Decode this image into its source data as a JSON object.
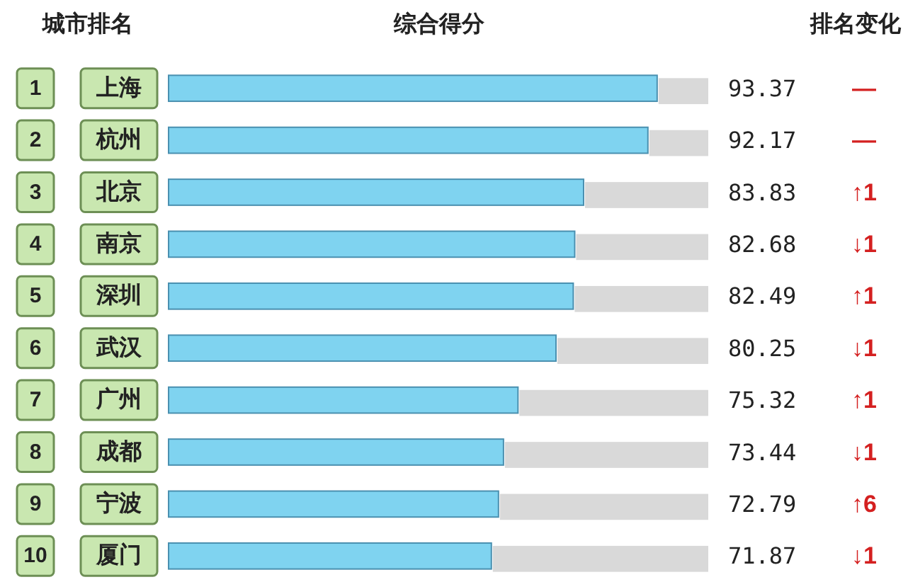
{
  "chart_data": {
    "type": "bar",
    "orientation": "horizontal",
    "ylabel": "城市排名",
    "xlabel": "综合得分",
    "categories": [
      "上海",
      "杭州",
      "北京",
      "南京",
      "深圳",
      "武汉",
      "广州",
      "成都",
      "宁波",
      "厦门"
    ],
    "values": [
      93.37,
      92.17,
      83.83,
      82.68,
      82.49,
      80.25,
      75.32,
      73.44,
      72.79,
      71.87
    ],
    "color": "#7fd3f0",
    "xlim": [
      30,
      100
    ],
    "data_labels": true,
    "annotations": [
      "排名变化",
      "1",
      "2",
      "3",
      "4",
      "5",
      "6",
      "7",
      "8",
      "9",
      "10",
      "—",
      "—",
      "↑1",
      "↓1",
      "↑1",
      "↓1",
      "↑1",
      "↓1",
      "↑6",
      "↓1"
    ]
  }
}
